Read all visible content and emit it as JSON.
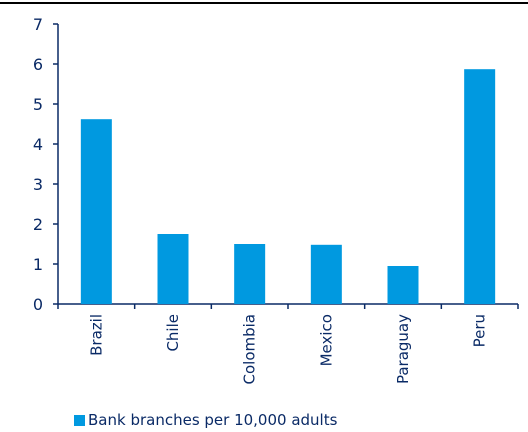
{
  "chart_data": {
    "type": "bar",
    "categories": [
      "Brazil",
      "Chile",
      "Colombia",
      "Mexico",
      "Paraguay",
      "Peru"
    ],
    "series": [
      {
        "name": "Bank branches per 10,000 adults",
        "values": [
          4.62,
          1.75,
          1.5,
          1.48,
          0.95,
          5.87
        ]
      }
    ],
    "ylim": [
      0,
      7
    ],
    "yticks": [
      "0",
      "1",
      "2",
      "3",
      "4",
      "5",
      "6",
      "7"
    ],
    "grid": false,
    "legend_position": "bottom-left",
    "bar_color": "#0099e0",
    "text_color": "#0a2a66",
    "axis_color": "#0a2a66"
  }
}
